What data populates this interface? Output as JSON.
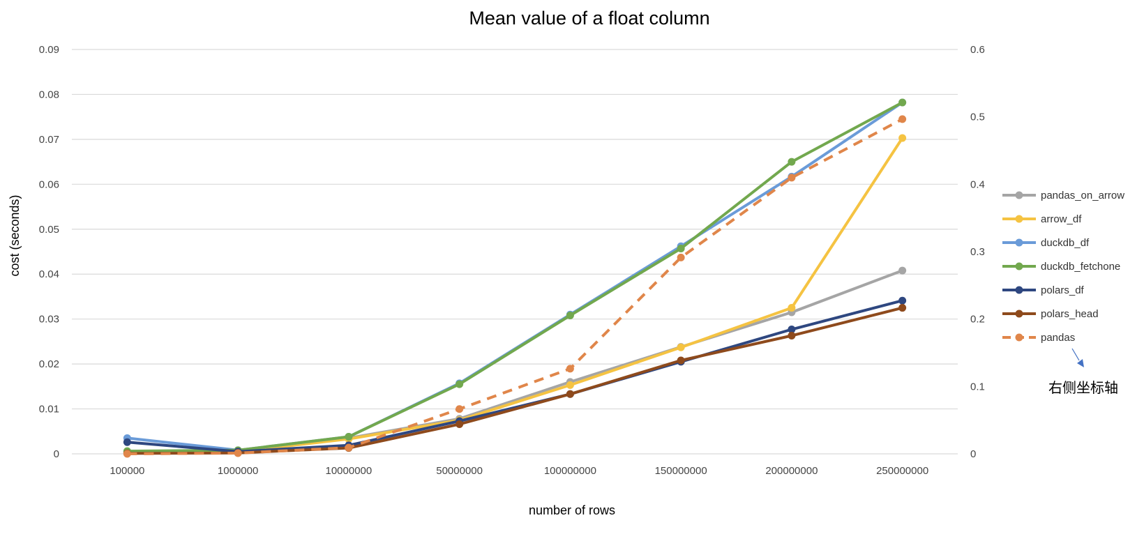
{
  "chart_data": {
    "type": "line",
    "title": "Mean value of a float column",
    "xlabel": "number of rows",
    "ylabel": "cost (seconds)",
    "categories": [
      "100000",
      "1000000",
      "10000000",
      "50000000",
      "100000000",
      "150000000",
      "200000000",
      "250000000"
    ],
    "ylim": [
      0,
      0.09
    ],
    "yticks": [
      "0",
      "0.01",
      "0.02",
      "0.03",
      "0.04",
      "0.05",
      "0.06",
      "0.07",
      "0.08",
      "0.09"
    ],
    "y2lim": [
      0,
      0.6
    ],
    "y2ticks": [
      "0",
      "0.1",
      "0.2",
      "0.3",
      "0.4",
      "0.5",
      "0.6"
    ],
    "grid": true,
    "legend_position": "right",
    "secondary_axis_note": "右侧坐标轴",
    "series": [
      {
        "name": "pandas_on_arrow",
        "color": "#a5a5a5",
        "dashed": false,
        "axis": "left",
        "values": [
          0.0003,
          0.0006,
          0.0035,
          0.0078,
          0.016,
          0.0238,
          0.0315,
          0.0408
        ]
      },
      {
        "name": "arrow_df",
        "color": "#f5c342",
        "dashed": false,
        "axis": "left",
        "values": [
          0.0003,
          0.0005,
          0.0033,
          0.0075,
          0.0153,
          0.0237,
          0.0325,
          0.0703
        ]
      },
      {
        "name": "duckdb_df",
        "color": "#6a9bd8",
        "dashed": false,
        "axis": "left",
        "values": [
          0.0035,
          0.0008,
          0.0038,
          0.0157,
          0.031,
          0.0462,
          0.0617,
          0.0782
        ]
      },
      {
        "name": "duckdb_fetchone",
        "color": "#72a84e",
        "dashed": false,
        "axis": "left",
        "values": [
          0.0006,
          0.0008,
          0.0038,
          0.0155,
          0.0308,
          0.0457,
          0.065,
          0.0782
        ]
      },
      {
        "name": "polars_df",
        "color": "#2e4780",
        "dashed": false,
        "axis": "left",
        "values": [
          0.0026,
          0.0005,
          0.0019,
          0.0073,
          0.0133,
          0.0205,
          0.0277,
          0.0341
        ]
      },
      {
        "name": "polars_head",
        "color": "#8e4a1c",
        "dashed": false,
        "axis": "left",
        "values": [
          0.0001,
          0.0002,
          0.0013,
          0.0066,
          0.0133,
          0.0208,
          0.0263,
          0.0325
        ]
      },
      {
        "name": "pandas",
        "color": "#e0864a",
        "dashed": true,
        "axis": "right",
        "values": [
          0.0,
          0.001,
          0.0092,
          0.0665,
          0.1263,
          0.2913,
          0.4098,
          0.4967
        ]
      }
    ]
  }
}
